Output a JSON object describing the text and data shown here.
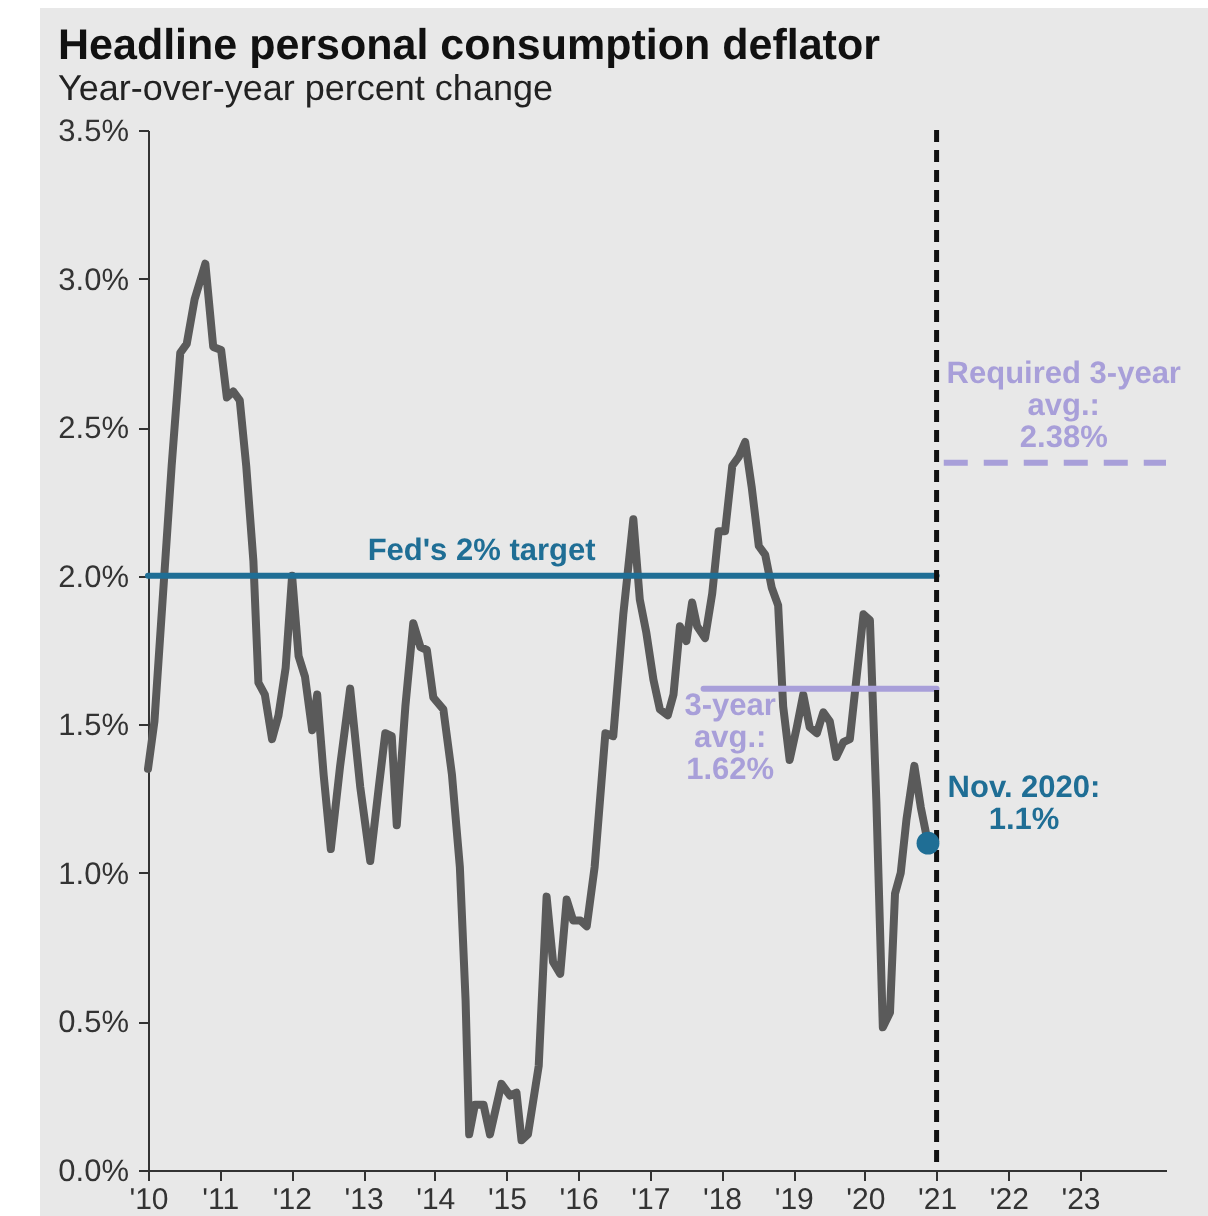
{
  "chart_data": {
    "type": "line",
    "title": "Headline personal consumption deflator",
    "subtitle": "Year-over-year percent change",
    "xlim": [
      2010,
      2024.2
    ],
    "xticks": [
      {
        "value": 2010,
        "label": "'10"
      },
      {
        "value": 2011,
        "label": "'11"
      },
      {
        "value": 2012,
        "label": "'12"
      },
      {
        "value": 2013,
        "label": "'13"
      },
      {
        "value": 2014,
        "label": "'14"
      },
      {
        "value": 2015,
        "label": "'15"
      },
      {
        "value": 2016,
        "label": "'16"
      },
      {
        "value": 2017,
        "label": "'17"
      },
      {
        "value": 2018,
        "label": "'18"
      },
      {
        "value": 2019,
        "label": "'19"
      },
      {
        "value": 2020,
        "label": "'20"
      },
      {
        "value": 2021,
        "label": "'21"
      },
      {
        "value": 2022,
        "label": "'22"
      },
      {
        "value": 2023,
        "label": "'23"
      }
    ],
    "ylim": [
      0,
      3.5
    ],
    "yticks": [
      {
        "value": 0,
        "label": "0.0%"
      },
      {
        "value": 0.5,
        "label": "0.5%"
      },
      {
        "value": 1,
        "label": "1.0%"
      },
      {
        "value": 1.5,
        "label": "1.5%"
      },
      {
        "value": 2,
        "label": "2.0%"
      },
      {
        "value": 2.5,
        "label": "2.5%"
      },
      {
        "value": 3,
        "label": "3.0%"
      },
      {
        "value": 3.5,
        "label": "3.5%"
      }
    ],
    "grid": false,
    "series": [
      {
        "type": "line",
        "color": "#5a5a5a",
        "x": [
          2010.0,
          2010.09,
          2010.21,
          2010.33,
          2010.45,
          2010.54,
          2010.65,
          2010.8,
          2010.91,
          2011.02,
          2011.1,
          2011.19,
          2011.28,
          2011.37,
          2011.47,
          2011.54,
          2011.63,
          2011.73,
          2011.82,
          2011.92,
          2012.01,
          2012.1,
          2012.19,
          2012.29,
          2012.36,
          2012.45,
          2012.55,
          2012.68,
          2012.82,
          2012.96,
          2013.1,
          2013.22,
          2013.31,
          2013.4,
          2013.47,
          2013.59,
          2013.7,
          2013.8,
          2013.89,
          2013.98,
          2014.12,
          2014.24,
          2014.35,
          2014.43,
          2014.48,
          2014.56,
          2014.68,
          2014.77,
          2014.93,
          2015.05,
          2015.14,
          2015.21,
          2015.3,
          2015.45,
          2015.56,
          2015.65,
          2015.75,
          2015.84,
          2015.93,
          2016.03,
          2016.12,
          2016.23,
          2016.38,
          2016.49,
          2016.63,
          2016.77,
          2016.86,
          2016.95,
          2017.05,
          2017.14,
          2017.25,
          2017.33,
          2017.42,
          2017.51,
          2017.59,
          2017.66,
          2017.77,
          2017.87,
          2017.96,
          2018.05,
          2018.15,
          2018.24,
          2018.33,
          2018.42,
          2018.52,
          2018.61,
          2018.7,
          2018.79,
          2018.86,
          2018.95,
          2019.05,
          2019.14,
          2019.23,
          2019.33,
          2019.42,
          2019.51,
          2019.6,
          2019.7,
          2019.79,
          2019.88,
          2019.98,
          2020.07,
          2020.16,
          2020.25,
          2020.35,
          2020.42,
          2020.5,
          2020.58,
          2020.69,
          2020.78,
          2020.88
        ],
        "values": [
          1.35,
          1.51,
          1.94,
          2.37,
          2.75,
          2.78,
          2.93,
          3.05,
          2.77,
          2.76,
          2.6,
          2.62,
          2.59,
          2.37,
          2.05,
          1.64,
          1.6,
          1.45,
          1.53,
          1.69,
          2.0,
          1.73,
          1.66,
          1.48,
          1.6,
          1.33,
          1.08,
          1.36,
          1.62,
          1.29,
          1.04,
          1.29,
          1.47,
          1.46,
          1.16,
          1.56,
          1.84,
          1.76,
          1.75,
          1.59,
          1.55,
          1.33,
          1.02,
          0.57,
          0.12,
          0.22,
          0.22,
          0.12,
          0.29,
          0.25,
          0.26,
          0.1,
          0.12,
          0.35,
          0.92,
          0.7,
          0.66,
          0.91,
          0.84,
          0.84,
          0.82,
          1.02,
          1.47,
          1.46,
          1.87,
          2.19,
          1.92,
          1.81,
          1.65,
          1.55,
          1.53,
          1.6,
          1.83,
          1.78,
          1.91,
          1.83,
          1.79,
          1.94,
          2.15,
          2.15,
          2.37,
          2.4,
          2.45,
          2.3,
          2.1,
          2.07,
          1.96,
          1.9,
          1.56,
          1.38,
          1.49,
          1.6,
          1.49,
          1.47,
          1.54,
          1.51,
          1.39,
          1.44,
          1.45,
          1.65,
          1.87,
          1.85,
          1.24,
          0.48,
          0.53,
          0.93,
          1.0,
          1.18,
          1.36,
          1.22,
          1.1
        ]
      },
      {
        "type": "line",
        "name": "Fed's 2% target",
        "color": "#1f6e95",
        "x": [
          2010,
          2021
        ],
        "values": [
          2,
          2
        ]
      },
      {
        "type": "line",
        "name": "3-year\navg.:\n1.62%",
        "color": "#a89fd9",
        "x": [
          2017.75,
          2021
        ],
        "values": [
          1.62,
          1.62
        ]
      },
      {
        "type": "line",
        "name": "Required 3-year\navg.:\n2.38%",
        "color": "#a89fd9",
        "line_style": "dashed",
        "x": [
          2021.1,
          2024.2
        ],
        "values": [
          2.38,
          2.38
        ]
      },
      {
        "type": "scatter",
        "color": "#1f6e95",
        "x": [
          2020.88
        ],
        "values": [
          1.1
        ]
      }
    ],
    "ref_lines": [
      {
        "axis": "x",
        "value": 2021,
        "color": "#111111",
        "line_style": "dashed"
      }
    ],
    "annotations": [
      {
        "text": "Nov. 2020:\n1.1%",
        "x": 2020.88,
        "y": 1.1
      }
    ]
  }
}
